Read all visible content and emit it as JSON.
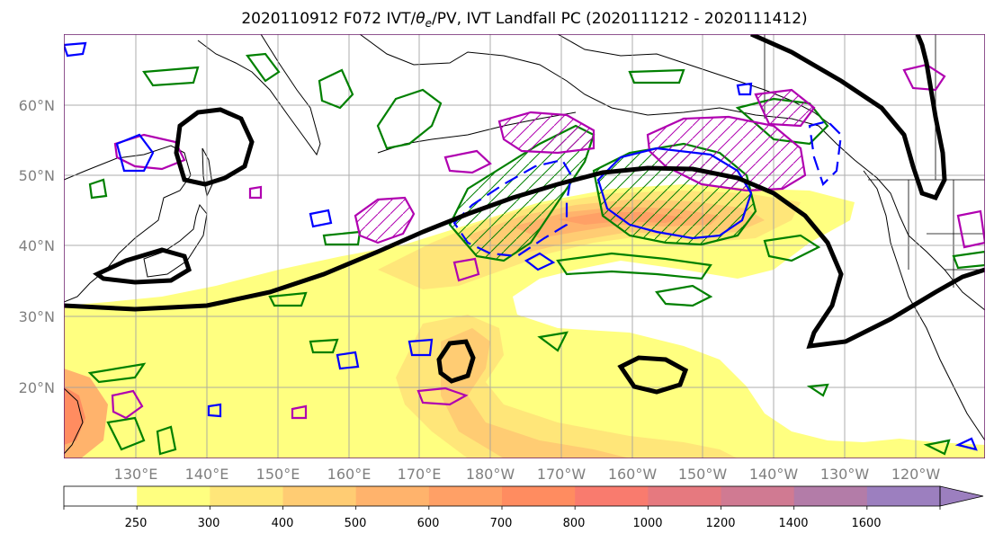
{
  "title_main": "2020110912 F072 IVT/",
  "title_theta": "θ",
  "title_sub": "e",
  "title_rest": "/PV, IVT Landfall PC (2020111212 - 2020111412)",
  "map": {
    "lat_labels": [
      "60°N",
      "50°N",
      "40°N",
      "30°N",
      "20°N"
    ],
    "lon_labels": [
      "130°E",
      "140°E",
      "150°E",
      "160°E",
      "170°E",
      "180°W",
      "170°W",
      "160°W",
      "150°W",
      "140°W",
      "130°W",
      "120°W"
    ]
  },
  "colorbar": {
    "ticks": [
      "250",
      "300",
      "400",
      "500",
      "600",
      "700",
      "800",
      "1000",
      "1200",
      "1400",
      "1600"
    ],
    "colors": [
      "#ffffff",
      "#ffff80",
      "#ffe679",
      "#ffcc73",
      "#ffb36c",
      "#ffa066",
      "#ff8c60",
      "#f97b6e",
      "#e6797f",
      "#d07a92",
      "#b37ca8",
      "#9c7fbf"
    ]
  },
  "legend_colors": {
    "land_outline": "#000000",
    "theta_e": "#000000",
    "pv": "#008000",
    "pc_positive": "#b000b0",
    "pc_negative": "#0000ff"
  }
}
